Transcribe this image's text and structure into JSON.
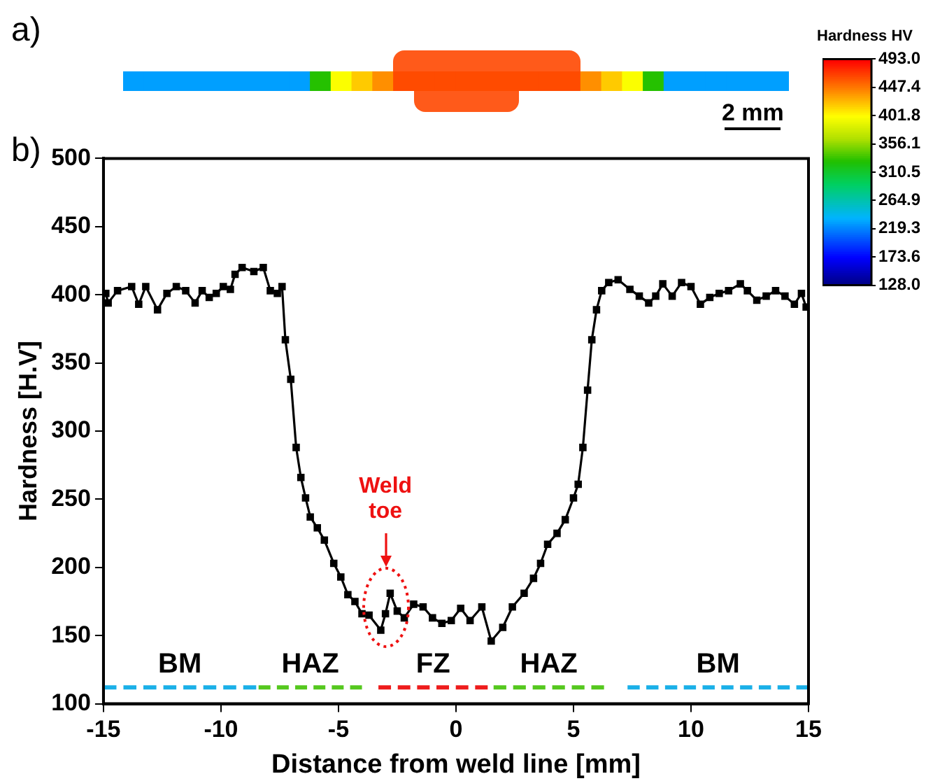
{
  "chart_data": [
    {
      "type": "heatmap",
      "clabel": "Hardness HV",
      "annotations": [
        "a)",
        "2 mm"
      ],
      "categories": [
        null,
        null,
        null,
        null,
        null,
        null,
        null,
        null,
        null,
        null,
        null,
        null,
        null,
        null,
        null,
        null,
        null,
        null,
        null,
        null,
        null,
        null,
        null,
        null,
        null,
        null,
        null,
        null,
        null,
        null,
        null,
        null
      ],
      "y_categories": [
        null
      ],
      "cells": [
        [
          230,
          230,
          230,
          230,
          230,
          230,
          230,
          230,
          230,
          330,
          400,
          420,
          440,
          465,
          465,
          465,
          465,
          465,
          465,
          465,
          465,
          465,
          440,
          420,
          400,
          330,
          230,
          230,
          230,
          230,
          230,
          230
        ]
      ],
      "clim": [
        128,
        493
      ],
      "cticks": [
        {
          "value": 128,
          "label": "128.0"
        },
        {
          "value": 173.6,
          "label": "173.6"
        },
        {
          "value": 219.3,
          "label": "219.3"
        },
        {
          "value": 264.9,
          "label": "264.9"
        },
        {
          "value": 310.5,
          "label": "310.5"
        },
        {
          "value": 356.1,
          "label": "356.1"
        },
        {
          "value": 401.8,
          "label": "401.8"
        },
        {
          "value": 447.4,
          "label": "447.4"
        },
        {
          "value": 493,
          "label": "493.0"
        }
      ]
    },
    {
      "type": "line",
      "xlabel": "Distance from weld line [mm]",
      "ylabel": "Hardness [H.V]",
      "marker": "square",
      "line_style": "solid",
      "series": [
        {
          "color": "#000000",
          "x": [
            -14.9,
            -14.8,
            -14.4,
            -13.8,
            -13.5,
            -13.2,
            -12.7,
            -12.3,
            -11.9,
            -11.5,
            -11.1,
            -10.8,
            -10.5,
            -10.2,
            -9.9,
            -9.6,
            -9.4,
            -9.1,
            -8.6,
            -8.2,
            -7.9,
            -7.6,
            -7.4,
            -7.26,
            -7.03,
            -6.8,
            -6.6,
            -6.4,
            -6.2,
            -5.9,
            -5.6,
            -5.2,
            -4.9,
            -4.6,
            -4.3,
            -4.0,
            -3.7,
            -3.2,
            -3.0,
            -2.8,
            -2.5,
            -2.2,
            -1.8,
            -1.4,
            -1.0,
            -0.6,
            -0.2,
            0.2,
            0.6,
            1.1,
            1.5,
            1.99,
            2.4,
            2.9,
            3.3,
            3.6,
            3.9,
            4.3,
            4.65,
            5.0,
            5.2,
            5.4,
            5.6,
            5.78,
            5.98,
            6.2,
            6.5,
            6.9,
            7.4,
            7.8,
            8.2,
            8.5,
            8.8,
            9.2,
            9.6,
            10.0,
            10.4,
            10.8,
            11.2,
            11.6,
            12.1,
            12.4,
            12.8,
            13.2,
            13.6,
            14.0,
            14.4,
            14.7,
            14.9
          ],
          "values": [
            401,
            394,
            403,
            406,
            393,
            406,
            389,
            401,
            406,
            403,
            394,
            403,
            398,
            401,
            406,
            404,
            415,
            420,
            417,
            420,
            403,
            401,
            406,
            367,
            338,
            288,
            266,
            251,
            237,
            229,
            220,
            203,
            193,
            180,
            175,
            166,
            165,
            154,
            166,
            181,
            168,
            163,
            173,
            171,
            163,
            159,
            161,
            170,
            161,
            171,
            146,
            156,
            171,
            181,
            192,
            203,
            217,
            225,
            235,
            251,
            261,
            288,
            330,
            367,
            389,
            403,
            409,
            411,
            404,
            399,
            394,
            399,
            408,
            399,
            409,
            406,
            393,
            398,
            401,
            403,
            408,
            403,
            396,
            399,
            403,
            399,
            393,
            401,
            391
          ]
        },
        {
          "name": "BM",
          "color": "#1ab0e8",
          "line_style": "dashed",
          "marker": "none",
          "x": [
            -15,
            -8.5
          ],
          "values": [
            112,
            112
          ]
        },
        {
          "name": "HAZ",
          "color": "#55c81e",
          "line_style": "dashed",
          "marker": "none",
          "x": [
            -8.4,
            -4
          ],
          "values": [
            112,
            112
          ]
        },
        {
          "name": "FZ",
          "color": "#ee1c1c",
          "line_style": "dashed",
          "marker": "none",
          "x": [
            -3.3,
            1.35
          ],
          "values": [
            112,
            112
          ]
        },
        {
          "name": "HAZ",
          "color": "#55c81e",
          "line_style": "dashed",
          "marker": "none",
          "x": [
            1.6,
            6.3
          ],
          "values": [
            112,
            112
          ]
        },
        {
          "name": "BM",
          "color": "#1ab0e8",
          "line_style": "dashed",
          "marker": "none",
          "x": [
            7.3,
            15
          ],
          "values": [
            112,
            112
          ]
        }
      ],
      "xlim": [
        -15,
        15
      ],
      "xticks": [
        -15,
        -10,
        -5,
        0,
        5,
        10,
        15
      ],
      "ylim": [
        100,
        500
      ],
      "yticks": [
        100,
        150,
        200,
        250,
        300,
        350,
        400,
        450,
        500
      ],
      "annotations": [
        "b)",
        "Weld toe"
      ]
    }
  ]
}
